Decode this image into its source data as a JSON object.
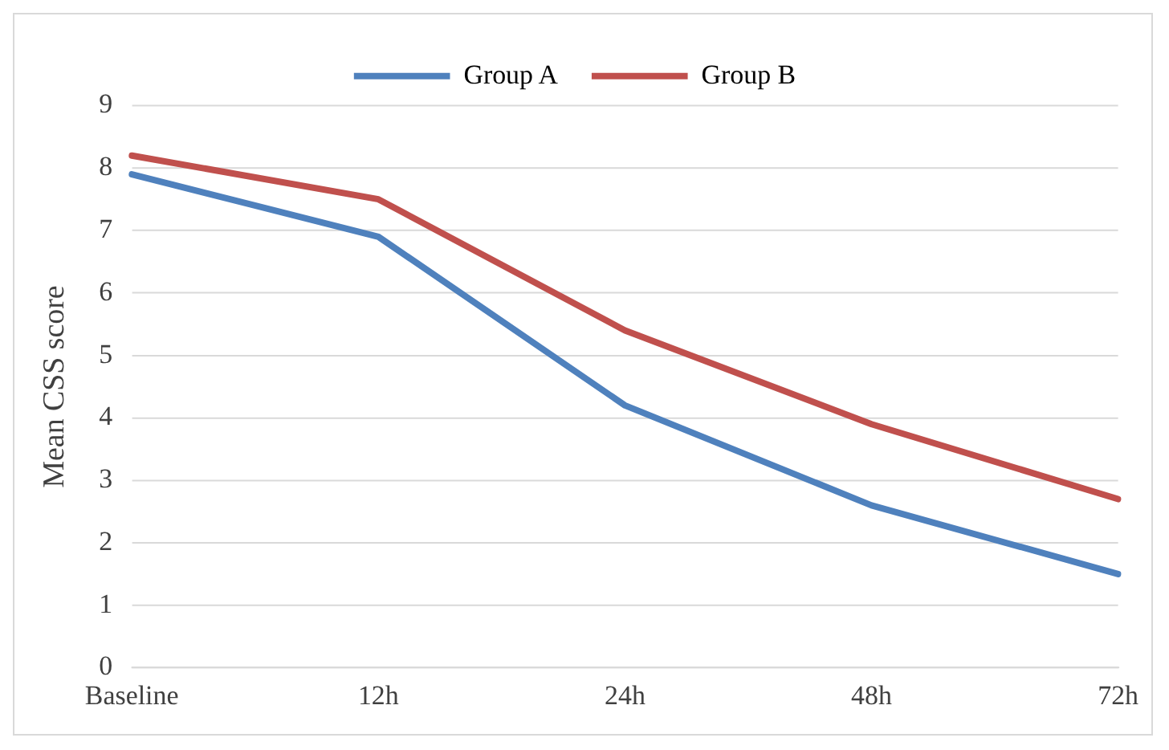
{
  "chart_data": {
    "type": "line",
    "ylabel": "Mean CSS score",
    "categories": [
      "Baseline",
      "12h",
      "24h",
      "48h",
      "72h"
    ],
    "series": [
      {
        "name": "Group A",
        "color": "#4f81bd",
        "values": [
          7.9,
          6.9,
          4.2,
          2.6,
          1.5
        ]
      },
      {
        "name": "Group B",
        "color": "#c0504d",
        "values": [
          8.2,
          7.5,
          5.4,
          3.9,
          2.7
        ]
      }
    ],
    "ylim": [
      0,
      9
    ],
    "yticks": [
      0,
      1,
      2,
      3,
      4,
      5,
      6,
      7,
      8,
      9
    ],
    "grid": "y",
    "legend": "top",
    "marker": "none",
    "line_style": "solid"
  }
}
